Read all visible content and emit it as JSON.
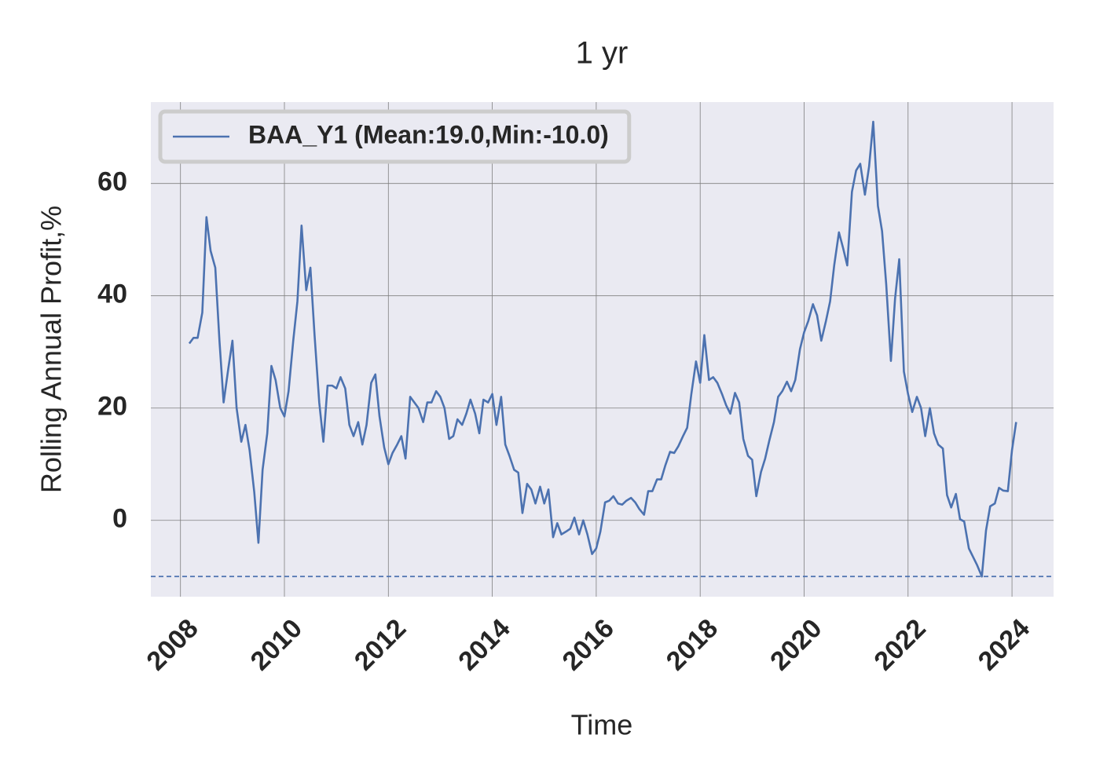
{
  "chart_data": {
    "type": "line",
    "title": "1 yr",
    "x_label": "Time",
    "y_label": "Rolling Annual Profit,%",
    "x": [
      2008.17,
      2008.25,
      2008.33,
      2008.42,
      2008.5,
      2008.58,
      2008.67,
      2008.75,
      2008.83,
      2008.92,
      2009,
      2009.08,
      2009.17,
      2009.25,
      2009.33,
      2009.42,
      2009.5,
      2009.58,
      2009.67,
      2009.75,
      2009.83,
      2009.92,
      2010,
      2010.08,
      2010.17,
      2010.25,
      2010.33,
      2010.42,
      2010.5,
      2010.58,
      2010.67,
      2010.75,
      2010.83,
      2010.92,
      2011,
      2011.08,
      2011.17,
      2011.25,
      2011.33,
      2011.42,
      2011.5,
      2011.58,
      2011.67,
      2011.75,
      2011.83,
      2011.92,
      2012,
      2012.08,
      2012.17,
      2012.25,
      2012.33,
      2012.42,
      2012.5,
      2012.58,
      2012.67,
      2012.75,
      2012.83,
      2012.92,
      2013,
      2013.08,
      2013.17,
      2013.25,
      2013.33,
      2013.42,
      2013.5,
      2013.58,
      2013.67,
      2013.75,
      2013.83,
      2013.92,
      2014,
      2014.08,
      2014.17,
      2014.25,
      2014.33,
      2014.42,
      2014.5,
      2014.58,
      2014.67,
      2014.75,
      2014.83,
      2014.92,
      2015,
      2015.08,
      2015.17,
      2015.25,
      2015.33,
      2015.42,
      2015.5,
      2015.58,
      2015.67,
      2015.75,
      2015.83,
      2015.92,
      2016,
      2016.08,
      2016.17,
      2016.25,
      2016.33,
      2016.42,
      2016.5,
      2016.58,
      2016.67,
      2016.75,
      2016.83,
      2016.92,
      2017,
      2017.08,
      2017.17,
      2017.25,
      2017.33,
      2017.42,
      2017.5,
      2017.58,
      2017.67,
      2017.75,
      2017.83,
      2017.92,
      2018,
      2018.08,
      2018.17,
      2018.25,
      2018.33,
      2018.42,
      2018.5,
      2018.58,
      2018.67,
      2018.75,
      2018.83,
      2018.92,
      2019,
      2019.08,
      2019.17,
      2019.25,
      2019.33,
      2019.42,
      2019.5,
      2019.58,
      2019.67,
      2019.75,
      2019.83,
      2019.92,
      2020,
      2020.08,
      2020.17,
      2020.25,
      2020.33,
      2020.42,
      2020.5,
      2020.58,
      2020.67,
      2020.75,
      2020.83,
      2020.92,
      2021,
      2021.08,
      2021.17,
      2021.25,
      2021.33,
      2021.42,
      2021.5,
      2021.58,
      2021.67,
      2021.75,
      2021.83,
      2021.92,
      2022,
      2022.08,
      2022.17,
      2022.25,
      2022.33,
      2022.42,
      2022.5,
      2022.58,
      2022.67,
      2022.75,
      2022.83,
      2022.92,
      2023,
      2023.08,
      2023.17,
      2023.25,
      2023.33,
      2023.42,
      2023.5,
      2023.58,
      2023.67,
      2023.75,
      2023.83,
      2023.92,
      2024,
      2024.08
    ],
    "series": [
      {
        "name": "BAA_Y1 (Mean:19.0,Min:-10.0)",
        "color": "#4c72b0",
        "values": [
          31.5,
          32.5,
          32.5,
          37,
          54,
          48,
          45,
          32,
          21,
          27,
          32,
          20,
          14,
          17,
          12.5,
          5,
          -4,
          9,
          15.5,
          27.5,
          25,
          20,
          18.5,
          23,
          32,
          39,
          52.5,
          41,
          45,
          33,
          21,
          14,
          24,
          24,
          23.5,
          25.5,
          23.5,
          17,
          15,
          17.5,
          13.5,
          17,
          24.5,
          26,
          18.5,
          13,
          10,
          12,
          13.5,
          15,
          11,
          22,
          21,
          20,
          17.5,
          21,
          21,
          23,
          22,
          20,
          14.5,
          15,
          18,
          17,
          19,
          21.5,
          19,
          15.5,
          21.5,
          21,
          22.5,
          17,
          22,
          13.5,
          11.5,
          9,
          8.5,
          1.3,
          6.5,
          5.5,
          3,
          6,
          3,
          5.5,
          -3,
          -0.5,
          -2.5,
          -2,
          -1.5,
          0.5,
          -2.5,
          0,
          -2.5,
          -6,
          -5,
          -2,
          3.2,
          3.5,
          4.3,
          3,
          2.8,
          3.5,
          4,
          3.2,
          2,
          1,
          5.2,
          5.2,
          7.3,
          7.3,
          9.8,
          12.2,
          12,
          13.2,
          15,
          16.5,
          22.5,
          28.3,
          24.5,
          33,
          25,
          25.5,
          24.5,
          22.5,
          20.5,
          19,
          22.7,
          21,
          14.5,
          11.5,
          10.8,
          4.3,
          8.6,
          11,
          14.2,
          17.5,
          22,
          23,
          24.7,
          23,
          25,
          30.5,
          33.5,
          35.5,
          38.5,
          36.5,
          32,
          35.5,
          39,
          45.5,
          51.3,
          48.5,
          45.4,
          58.5,
          62.3,
          63.5,
          58,
          63,
          71,
          56,
          51.5,
          42,
          28.4,
          39.5,
          46.5,
          26.5,
          22.5,
          19.3,
          22,
          20,
          15,
          20,
          15.5,
          13.5,
          12.8,
          4.5,
          2.3,
          4.7,
          0.2,
          -0.2,
          -5,
          -6.5,
          -8,
          -10,
          -1.8,
          2.5,
          3,
          5.8,
          5.3,
          5.2,
          12.5,
          17.5
        ]
      }
    ],
    "hline": -10,
    "xlim": [
      2007.43,
      2024.8
    ],
    "xticks": [
      2008,
      2010,
      2012,
      2014,
      2016,
      2018,
      2020,
      2022,
      2024
    ],
    "ylim": [
      -13.6,
      74.5
    ],
    "yticks": [
      0,
      20,
      40,
      60
    ],
    "grid": true,
    "legend": "upper left"
  }
}
